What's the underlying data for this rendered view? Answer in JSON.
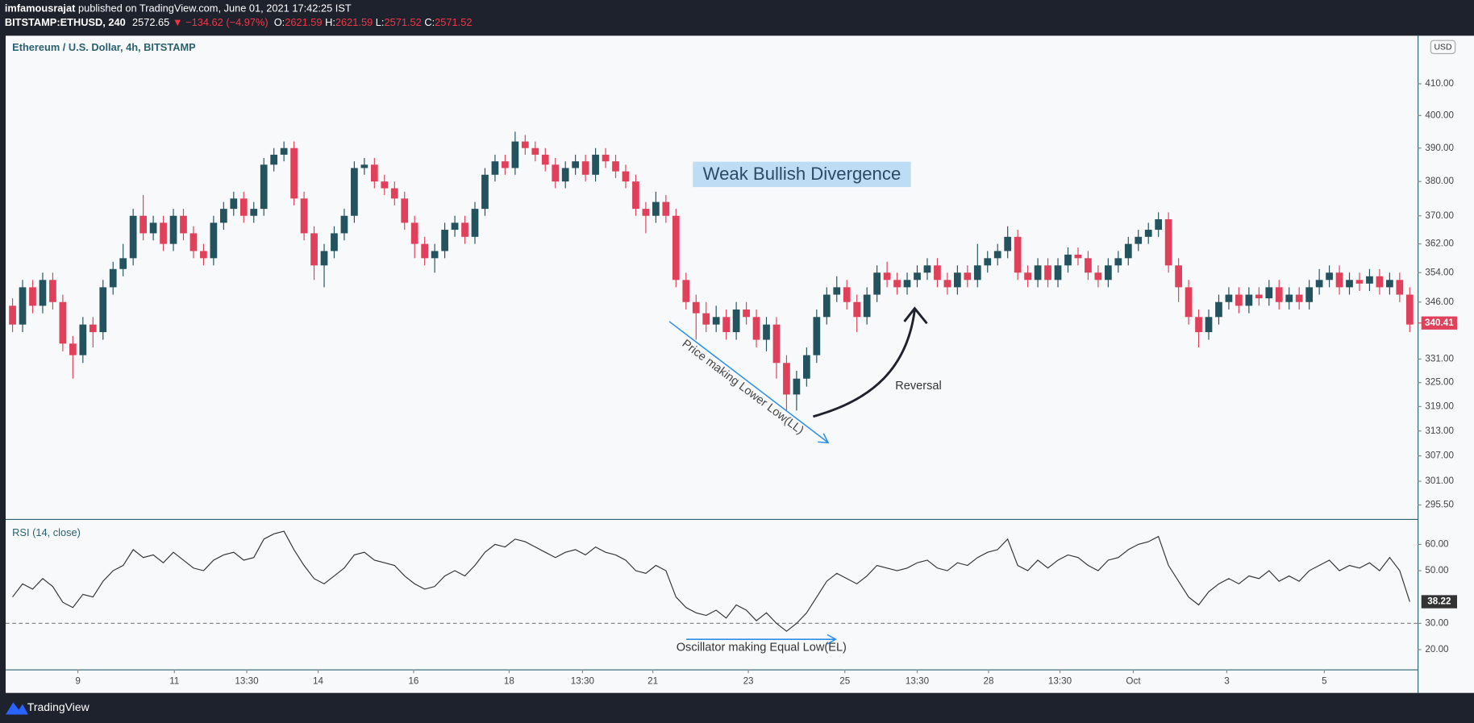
{
  "header": {
    "author": "imfamousrajat",
    "published": "published on TradingView.com, June 01, 2021 17:42:25 IST",
    "symbol": "BITSTAMP:ETHUSD, 240",
    "price": "2572.65",
    "change": "▼ −134.62 (−4.97%)",
    "ohlc": [
      {
        "label": "O:",
        "value": "2621.59"
      },
      {
        "label": "H:",
        "value": "2621.59"
      },
      {
        "label": "L:",
        "value": "2571.52"
      },
      {
        "label": "C:",
        "value": "2571.52"
      }
    ]
  },
  "chart_data": {
    "type": "candlestick",
    "title": "Ethereum / U.S. Dollar, 4h, BITSTAMP",
    "currency": "USD",
    "open": [
      345,
      340,
      350,
      345,
      352,
      346,
      335,
      332,
      340,
      338,
      350,
      355,
      358,
      370,
      365,
      368,
      362,
      370,
      365,
      360,
      358,
      368,
      372,
      375,
      370,
      372,
      385,
      388,
      390,
      375,
      365,
      356,
      360,
      365,
      370,
      384,
      385,
      380,
      378,
      375,
      368,
      362,
      358,
      360,
      366,
      368,
      364,
      372,
      382,
      386,
      384,
      392,
      390,
      388,
      385,
      380,
      384,
      386,
      382,
      388,
      386,
      383,
      380,
      372,
      370,
      374,
      370,
      352,
      346,
      343,
      340,
      342,
      338,
      344,
      342,
      336,
      340,
      330,
      322,
      326,
      332,
      342,
      348,
      350,
      346,
      342,
      348,
      354,
      352,
      350,
      352,
      354,
      356,
      352,
      350,
      354,
      352,
      356,
      358,
      360,
      364,
      354,
      352,
      356,
      352,
      356,
      359,
      358,
      354,
      352,
      356,
      358,
      362,
      364,
      366,
      369,
      356,
      350,
      342,
      338,
      342,
      346,
      348,
      345,
      348,
      347,
      350,
      346,
      348,
      346,
      350,
      352,
      354,
      350,
      352,
      351,
      353,
      350,
      352,
      348
    ],
    "high": [
      347,
      352,
      352,
      354,
      354,
      348,
      337,
      342,
      342,
      352,
      357,
      362,
      372,
      376,
      370,
      370,
      372,
      372,
      367,
      362,
      370,
      374,
      377,
      377,
      374,
      387,
      390,
      392,
      392,
      377,
      367,
      362,
      367,
      372,
      386,
      387,
      387,
      382,
      380,
      377,
      370,
      364,
      362,
      368,
      370,
      370,
      374,
      384,
      388,
      388,
      395,
      394,
      392,
      390,
      387,
      386,
      388,
      388,
      390,
      390,
      388,
      385,
      382,
      374,
      377,
      376,
      372,
      354,
      348,
      346,
      345,
      344,
      346,
      346,
      344,
      342,
      342,
      332,
      328,
      334,
      344,
      350,
      353,
      352,
      348,
      350,
      356,
      357,
      354,
      354,
      356,
      358,
      358,
      354,
      356,
      356,
      362,
      360,
      362,
      367,
      366,
      356,
      358,
      358,
      358,
      361,
      361,
      360,
      356,
      358,
      360,
      364,
      366,
      368,
      371,
      371,
      358,
      352,
      344,
      344,
      348,
      350,
      350,
      350,
      350,
      352,
      352,
      350,
      350,
      352,
      355,
      356,
      356,
      354,
      354,
      355,
      355,
      354,
      354,
      350
    ],
    "low": [
      338,
      338,
      343,
      343,
      344,
      333,
      326,
      330,
      334,
      336,
      348,
      353,
      356,
      363,
      363,
      360,
      360,
      363,
      358,
      356,
      356,
      366,
      370,
      368,
      368,
      370,
      383,
      386,
      373,
      363,
      352,
      350,
      358,
      363,
      368,
      382,
      378,
      376,
      373,
      366,
      358,
      356,
      354,
      358,
      364,
      362,
      362,
      370,
      380,
      382,
      382,
      388,
      386,
      383,
      378,
      378,
      382,
      380,
      380,
      384,
      381,
      378,
      370,
      365,
      368,
      368,
      350,
      344,
      336,
      338,
      338,
      336,
      336,
      340,
      334,
      333,
      326,
      318,
      318,
      324,
      330,
      340,
      346,
      344,
      338,
      340,
      346,
      350,
      348,
      348,
      350,
      352,
      350,
      348,
      348,
      350,
      350,
      354,
      356,
      358,
      352,
      350,
      350,
      350,
      350,
      354,
      356,
      352,
      350,
      350,
      354,
      356,
      360,
      362,
      364,
      354,
      346,
      340,
      334,
      336,
      340,
      344,
      343,
      343,
      345,
      345,
      344,
      344,
      344,
      344,
      348,
      350,
      348,
      348,
      349,
      349,
      348,
      348,
      346,
      338
    ],
    "close": [
      340,
      350,
      345,
      352,
      346,
      335,
      332,
      340,
      338,
      350,
      355,
      358,
      370,
      365,
      368,
      362,
      370,
      365,
      360,
      358,
      368,
      372,
      375,
      370,
      372,
      385,
      388,
      390,
      375,
      365,
      356,
      360,
      365,
      370,
      384,
      385,
      380,
      378,
      375,
      368,
      362,
      358,
      360,
      366,
      368,
      364,
      372,
      382,
      386,
      384,
      392,
      390,
      388,
      385,
      380,
      384,
      386,
      382,
      388,
      386,
      383,
      380,
      372,
      370,
      374,
      370,
      352,
      346,
      343,
      340,
      342,
      338,
      344,
      342,
      336,
      340,
      330,
      322,
      326,
      332,
      342,
      348,
      350,
      346,
      342,
      348,
      354,
      352,
      350,
      352,
      354,
      356,
      352,
      350,
      354,
      352,
      356,
      358,
      360,
      364,
      354,
      352,
      356,
      352,
      356,
      359,
      358,
      354,
      352,
      356,
      358,
      362,
      364,
      366,
      369,
      356,
      350,
      342,
      338,
      342,
      346,
      348,
      345,
      348,
      347,
      350,
      346,
      348,
      346,
      350,
      352,
      354,
      350,
      352,
      351,
      353,
      350,
      352,
      348,
      340
    ],
    "up_color": "#22535e",
    "down_color": "#e0405a",
    "ylim": [
      292.3,
      425.6
    ],
    "log": true,
    "yticks": [
      {
        "value": 295.5,
        "label": "295.50"
      },
      {
        "value": 301,
        "label": "301.00"
      },
      {
        "value": 307,
        "label": "307.00"
      },
      {
        "value": 313,
        "label": "313.00"
      },
      {
        "value": 319,
        "label": "319.00"
      },
      {
        "value": 325,
        "label": "325.00"
      },
      {
        "value": 331,
        "label": "331.00"
      },
      {
        "value": 346,
        "label": "346.00"
      },
      {
        "value": 354,
        "label": "354.00"
      },
      {
        "value": 362,
        "label": "362.00"
      },
      {
        "value": 370,
        "label": "370.00"
      },
      {
        "value": 380,
        "label": "380.00"
      },
      {
        "value": 390,
        "label": "390.00"
      },
      {
        "value": 400,
        "label": "400.00"
      },
      {
        "value": 410,
        "label": "410.00"
      }
    ],
    "xticks": [
      {
        "value": 6.5,
        "label": "9"
      },
      {
        "value": 16.1,
        "label": "11"
      },
      {
        "value": 23.3,
        "label": "13:30"
      },
      {
        "value": 30.4,
        "label": "14"
      },
      {
        "value": 39.9,
        "label": "16"
      },
      {
        "value": 49.4,
        "label": "18"
      },
      {
        "value": 56.7,
        "label": "13:30"
      },
      {
        "value": 63.7,
        "label": "21"
      },
      {
        "value": 73.2,
        "label": "23"
      },
      {
        "value": 82.8,
        "label": "25"
      },
      {
        "value": 90,
        "label": "13:30"
      },
      {
        "value": 97.1,
        "label": "28"
      },
      {
        "value": 104.2,
        "label": "13:30"
      },
      {
        "value": 111.5,
        "label": "Oct"
      },
      {
        "value": 120.8,
        "label": "3"
      },
      {
        "value": 130.5,
        "label": "5"
      }
    ],
    "last_price": 340.41,
    "annotations": {
      "divergence": "Weak Bullish Divergence",
      "lower_low": "Price making Lower Low(LL)",
      "reversal": "Reversal",
      "equal_low": "Oscillator making Equal Low(EL)"
    },
    "rsi": {
      "name": "RSI (14, close)",
      "color": "#333333",
      "ylim": [
        12.5,
        69.3
      ],
      "level": 30,
      "yticks": [
        {
          "value": 20,
          "label": "20.00"
        },
        {
          "value": 30,
          "label": "30.00"
        },
        {
          "value": 50,
          "label": "50.00"
        },
        {
          "value": 60,
          "label": "60.00"
        }
      ],
      "values": [
        40,
        45,
        43,
        47,
        44,
        38,
        36,
        41,
        40,
        46,
        50,
        52,
        58,
        55,
        56,
        53,
        57,
        54,
        51,
        50,
        54,
        56,
        57,
        54,
        55,
        62,
        64,
        65,
        58,
        52,
        47,
        45,
        48,
        51,
        56,
        57,
        54,
        53,
        52,
        48,
        45,
        43,
        44,
        48,
        50,
        48,
        52,
        57,
        60,
        59,
        62,
        61,
        59,
        57,
        55,
        57,
        58,
        56,
        59,
        57,
        56,
        54,
        50,
        49,
        52,
        50,
        40,
        36,
        34,
        33,
        35,
        32,
        37,
        35,
        31,
        34,
        30,
        27,
        30,
        34,
        40,
        46,
        49,
        47,
        45,
        48,
        52,
        51,
        50,
        51,
        53,
        54,
        51,
        50,
        53,
        52,
        55,
        57,
        58,
        62,
        52,
        50,
        54,
        51,
        54,
        56,
        55,
        52,
        50,
        54,
        55,
        58,
        60,
        61,
        63,
        52,
        46,
        40,
        37,
        42,
        45,
        47,
        45,
        48,
        47,
        50,
        46,
        48,
        46,
        50,
        52,
        54,
        50,
        52,
        51,
        53,
        50,
        55,
        50,
        38.22
      ]
    },
    "brand": "TradingView"
  }
}
